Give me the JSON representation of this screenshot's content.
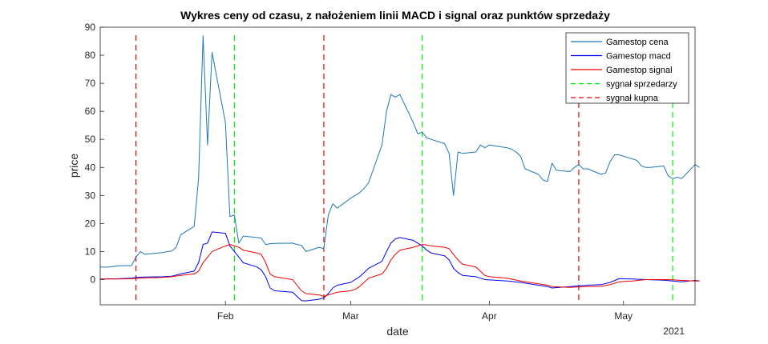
{
  "chart_data": {
    "type": "line",
    "title": "Wykres ceny od czasu, z nałożeniem linii MACD i signal oraz punktów sprzedaży",
    "xlabel": "date",
    "ylabel": "price",
    "x_range": [
      "2021-01-04",
      "2021-05-14"
    ],
    "ylim": [
      -9,
      90
    ],
    "y_ticks": [
      0,
      10,
      20,
      30,
      40,
      50,
      60,
      70,
      80,
      90
    ],
    "x_ticks": [
      {
        "date": "2021-02-01",
        "label": "Feb"
      },
      {
        "date": "2021-03-01",
        "label": "Mar"
      },
      {
        "date": "2021-04-01",
        "label": "Apr"
      },
      {
        "date": "2021-05-01",
        "label": "May"
      }
    ],
    "year_label": "2021",
    "grid": false,
    "legend_position": "top-right",
    "series": [
      {
        "name": "Gamestop cena",
        "color": "#1f77b4",
        "style": "solid",
        "points": [
          [
            "2021-01-04",
            4.5
          ],
          [
            "2021-01-05",
            4.4
          ],
          [
            "2021-01-06",
            4.5
          ],
          [
            "2021-01-07",
            4.7
          ],
          [
            "2021-01-08",
            4.9
          ],
          [
            "2021-01-11",
            5.0
          ],
          [
            "2021-01-12",
            8.0
          ],
          [
            "2021-01-13",
            10.0
          ],
          [
            "2021-01-14",
            9.0
          ],
          [
            "2021-01-15",
            9.2
          ],
          [
            "2021-01-18",
            9.6
          ],
          [
            "2021-01-19",
            10.0
          ],
          [
            "2021-01-20",
            10.2
          ],
          [
            "2021-01-21",
            11.5
          ],
          [
            "2021-01-22",
            16.0
          ],
          [
            "2021-01-25",
            19.0
          ],
          [
            "2021-01-26",
            36.0
          ],
          [
            "2021-01-27",
            87.0
          ],
          [
            "2021-01-28",
            48.0
          ],
          [
            "2021-01-29",
            81.0
          ],
          [
            "2021-02-01",
            56.0
          ],
          [
            "2021-02-02",
            22.5
          ],
          [
            "2021-02-03",
            23.0
          ],
          [
            "2021-02-04",
            13.0
          ],
          [
            "2021-02-05",
            15.5
          ],
          [
            "2021-02-08",
            15.0
          ],
          [
            "2021-02-09",
            14.8
          ],
          [
            "2021-02-10",
            12.5
          ],
          [
            "2021-02-11",
            12.8
          ],
          [
            "2021-02-12",
            12.9
          ],
          [
            "2021-02-16",
            13.0
          ],
          [
            "2021-02-17",
            12.5
          ],
          [
            "2021-02-18",
            12.2
          ],
          [
            "2021-02-19",
            10.0
          ],
          [
            "2021-02-22",
            11.5
          ],
          [
            "2021-02-23",
            11.0
          ],
          [
            "2021-02-24",
            23.0
          ],
          [
            "2021-02-25",
            27.0
          ],
          [
            "2021-02-26",
            25.5
          ],
          [
            "2021-03-01",
            29.0
          ],
          [
            "2021-03-02",
            30.0
          ],
          [
            "2021-03-03",
            31.0
          ],
          [
            "2021-03-04",
            32.5
          ],
          [
            "2021-03-05",
            34.5
          ],
          [
            "2021-03-08",
            48.0
          ],
          [
            "2021-03-09",
            60.0
          ],
          [
            "2021-03-10",
            66.0
          ],
          [
            "2021-03-11",
            65.0
          ],
          [
            "2021-03-12",
            66.0
          ],
          [
            "2021-03-15",
            56.0
          ],
          [
            "2021-03-16",
            52.0
          ],
          [
            "2021-03-17",
            52.5
          ],
          [
            "2021-03-18",
            50.5
          ],
          [
            "2021-03-19",
            50.0
          ],
          [
            "2021-03-22",
            48.5
          ],
          [
            "2021-03-23",
            45.0
          ],
          [
            "2021-03-24",
            30.0
          ],
          [
            "2021-03-25",
            45.5
          ],
          [
            "2021-03-26",
            45.0
          ],
          [
            "2021-03-29",
            45.5
          ],
          [
            "2021-03-30",
            48.0
          ],
          [
            "2021-03-31",
            47.0
          ],
          [
            "2021-04-01",
            48.0
          ],
          [
            "2021-04-05",
            47.0
          ],
          [
            "2021-04-06",
            46.5
          ],
          [
            "2021-04-07",
            45.5
          ],
          [
            "2021-04-08",
            44.0
          ],
          [
            "2021-04-09",
            39.5
          ],
          [
            "2021-04-12",
            37.5
          ],
          [
            "2021-04-13",
            35.5
          ],
          [
            "2021-04-14",
            35.0
          ],
          [
            "2021-04-15",
            41.5
          ],
          [
            "2021-04-16",
            39.0
          ],
          [
            "2021-04-19",
            38.5
          ],
          [
            "2021-04-20",
            40.0
          ],
          [
            "2021-04-21",
            41.0
          ],
          [
            "2021-04-22",
            39.5
          ],
          [
            "2021-04-23",
            39.5
          ],
          [
            "2021-04-26",
            37.5
          ],
          [
            "2021-04-27",
            38.0
          ],
          [
            "2021-04-28",
            42.0
          ],
          [
            "2021-04-29",
            44.5
          ],
          [
            "2021-04-30",
            44.5
          ],
          [
            "2021-05-03",
            43.0
          ],
          [
            "2021-05-04",
            42.5
          ],
          [
            "2021-05-05",
            40.5
          ],
          [
            "2021-05-06",
            40.0
          ],
          [
            "2021-05-07",
            40.0
          ],
          [
            "2021-05-10",
            40.5
          ],
          [
            "2021-05-11",
            37.0
          ],
          [
            "2021-05-12",
            36.0
          ],
          [
            "2021-05-13",
            36.5
          ],
          [
            "2021-05-14",
            36.0
          ],
          [
            "2021-05-17",
            41.0
          ],
          [
            "2021-05-18",
            40.0
          ]
        ]
      },
      {
        "name": "Gamestop macd",
        "color": "#0000ee",
        "style": "solid",
        "points": [
          [
            "2021-01-04",
            0.2
          ],
          [
            "2021-01-08",
            0.3
          ],
          [
            "2021-01-11",
            0.5
          ],
          [
            "2021-01-12",
            0.8
          ],
          [
            "2021-01-14",
            0.9
          ],
          [
            "2021-01-18",
            1.0
          ],
          [
            "2021-01-20",
            1.2
          ],
          [
            "2021-01-22",
            2.0
          ],
          [
            "2021-01-25",
            3.0
          ],
          [
            "2021-01-26",
            6.0
          ],
          [
            "2021-01-27",
            12.5
          ],
          [
            "2021-01-28",
            13.0
          ],
          [
            "2021-01-29",
            17.0
          ],
          [
            "2021-02-01",
            16.5
          ],
          [
            "2021-02-02",
            12.0
          ],
          [
            "2021-02-03",
            10.0
          ],
          [
            "2021-02-04",
            8.0
          ],
          [
            "2021-02-05",
            6.0
          ],
          [
            "2021-02-08",
            4.5
          ],
          [
            "2021-02-09",
            3.5
          ],
          [
            "2021-02-10",
            1.0
          ],
          [
            "2021-02-11",
            -3.0
          ],
          [
            "2021-02-12",
            -4.0
          ],
          [
            "2021-02-16",
            -4.5
          ],
          [
            "2021-02-17",
            -6.0
          ],
          [
            "2021-02-18",
            -7.5
          ],
          [
            "2021-02-19",
            -7.6
          ],
          [
            "2021-02-22",
            -7.0
          ],
          [
            "2021-02-23",
            -6.5
          ],
          [
            "2021-02-24",
            -5.0
          ],
          [
            "2021-02-25",
            -3.0
          ],
          [
            "2021-02-26",
            -2.0
          ],
          [
            "2021-03-01",
            -1.0
          ],
          [
            "2021-03-02",
            0.0
          ],
          [
            "2021-03-03",
            1.0
          ],
          [
            "2021-03-04",
            2.5
          ],
          [
            "2021-03-05",
            4.0
          ],
          [
            "2021-03-08",
            6.5
          ],
          [
            "2021-03-09",
            10.0
          ],
          [
            "2021-03-10",
            13.0
          ],
          [
            "2021-03-11",
            14.5
          ],
          [
            "2021-03-12",
            15.0
          ],
          [
            "2021-03-15",
            14.0
          ],
          [
            "2021-03-16",
            13.0
          ],
          [
            "2021-03-17",
            12.0
          ],
          [
            "2021-03-18",
            10.5
          ],
          [
            "2021-03-19",
            9.5
          ],
          [
            "2021-03-22",
            8.5
          ],
          [
            "2021-03-23",
            7.0
          ],
          [
            "2021-03-24",
            4.0
          ],
          [
            "2021-03-25",
            2.5
          ],
          [
            "2021-03-26",
            1.5
          ],
          [
            "2021-03-29",
            1.0
          ],
          [
            "2021-03-30",
            0.5
          ],
          [
            "2021-03-31",
            0.0
          ],
          [
            "2021-04-05",
            -0.5
          ],
          [
            "2021-04-08",
            -1.0
          ],
          [
            "2021-04-12",
            -2.0
          ],
          [
            "2021-04-14",
            -2.5
          ],
          [
            "2021-04-15",
            -3.0
          ],
          [
            "2021-04-19",
            -2.5
          ],
          [
            "2021-04-21",
            -2.2
          ],
          [
            "2021-04-23",
            -2.0
          ],
          [
            "2021-04-26",
            -1.8
          ],
          [
            "2021-04-28",
            -1.0
          ],
          [
            "2021-04-30",
            0.3
          ],
          [
            "2021-05-03",
            0.2
          ],
          [
            "2021-05-06",
            0.0
          ],
          [
            "2021-05-10",
            -0.2
          ],
          [
            "2021-05-12",
            -0.5
          ],
          [
            "2021-05-14",
            -0.8
          ],
          [
            "2021-05-17",
            -0.3
          ],
          [
            "2021-05-18",
            -0.5
          ]
        ]
      },
      {
        "name": "Gamestop signal",
        "color": "#ee0000",
        "style": "solid",
        "points": [
          [
            "2021-01-04",
            0.2
          ],
          [
            "2021-01-08",
            0.2
          ],
          [
            "2021-01-11",
            0.3
          ],
          [
            "2021-01-14",
            0.6
          ],
          [
            "2021-01-18",
            0.8
          ],
          [
            "2021-01-20",
            1.0
          ],
          [
            "2021-01-22",
            1.5
          ],
          [
            "2021-01-25",
            2.0
          ],
          [
            "2021-01-26",
            3.0
          ],
          [
            "2021-01-27",
            6.0
          ],
          [
            "2021-01-28",
            8.0
          ],
          [
            "2021-01-29",
            10.0
          ],
          [
            "2021-02-01",
            12.0
          ],
          [
            "2021-02-02",
            12.5
          ],
          [
            "2021-02-03",
            12.0
          ],
          [
            "2021-02-04",
            11.5
          ],
          [
            "2021-02-05",
            10.5
          ],
          [
            "2021-02-08",
            9.5
          ],
          [
            "2021-02-09",
            9.0
          ],
          [
            "2021-02-10",
            6.0
          ],
          [
            "2021-02-11",
            2.0
          ],
          [
            "2021-02-12",
            1.0
          ],
          [
            "2021-02-16",
            0.0
          ],
          [
            "2021-02-17",
            -2.0
          ],
          [
            "2021-02-18",
            -4.0
          ],
          [
            "2021-02-19",
            -5.0
          ],
          [
            "2021-02-22",
            -5.5
          ],
          [
            "2021-02-23",
            -6.0
          ],
          [
            "2021-02-24",
            -5.5
          ],
          [
            "2021-02-25",
            -5.0
          ],
          [
            "2021-02-26",
            -4.5
          ],
          [
            "2021-03-01",
            -4.0
          ],
          [
            "2021-03-02",
            -3.5
          ],
          [
            "2021-03-03",
            -2.5
          ],
          [
            "2021-03-04",
            -1.0
          ],
          [
            "2021-03-05",
            0.5
          ],
          [
            "2021-03-08",
            2.0
          ],
          [
            "2021-03-09",
            4.0
          ],
          [
            "2021-03-10",
            7.0
          ],
          [
            "2021-03-11",
            9.0
          ],
          [
            "2021-03-12",
            10.5
          ],
          [
            "2021-03-15",
            11.5
          ],
          [
            "2021-03-16",
            12.0
          ],
          [
            "2021-03-17",
            12.5
          ],
          [
            "2021-03-18",
            12.3
          ],
          [
            "2021-03-19",
            12.0
          ],
          [
            "2021-03-22",
            11.5
          ],
          [
            "2021-03-23",
            11.0
          ],
          [
            "2021-03-24",
            9.0
          ],
          [
            "2021-03-25",
            7.0
          ],
          [
            "2021-03-26",
            5.5
          ],
          [
            "2021-03-29",
            4.5
          ],
          [
            "2021-03-30",
            3.0
          ],
          [
            "2021-03-31",
            1.5
          ],
          [
            "2021-04-01",
            1.0
          ],
          [
            "2021-04-05",
            0.5
          ],
          [
            "2021-04-08",
            -0.5
          ],
          [
            "2021-04-12",
            -1.5
          ],
          [
            "2021-04-14",
            -2.0
          ],
          [
            "2021-04-15",
            -2.5
          ],
          [
            "2021-04-19",
            -2.8
          ],
          [
            "2021-04-21",
            -2.6
          ],
          [
            "2021-04-23",
            -2.5
          ],
          [
            "2021-04-26",
            -2.4
          ],
          [
            "2021-04-28",
            -1.8
          ],
          [
            "2021-04-30",
            -0.8
          ],
          [
            "2021-05-03",
            -0.5
          ],
          [
            "2021-05-06",
            0.0
          ],
          [
            "2021-05-10",
            0.0
          ],
          [
            "2021-05-12",
            -0.1
          ],
          [
            "2021-05-14",
            -0.3
          ],
          [
            "2021-05-17",
            -0.5
          ],
          [
            "2021-05-18",
            -0.5
          ]
        ]
      }
    ],
    "vertical_lines": [
      {
        "name": "sygnał sprzedarzy",
        "color": "#00ee00",
        "style": "dashed",
        "dates": [
          "2021-02-03",
          "2021-03-17",
          "2021-05-12"
        ]
      },
      {
        "name": "sygnał kupna",
        "color": "#ee0000",
        "style": "dashed",
        "dates": [
          "2021-01-12",
          "2021-02-23",
          "2021-04-21"
        ]
      }
    ]
  }
}
